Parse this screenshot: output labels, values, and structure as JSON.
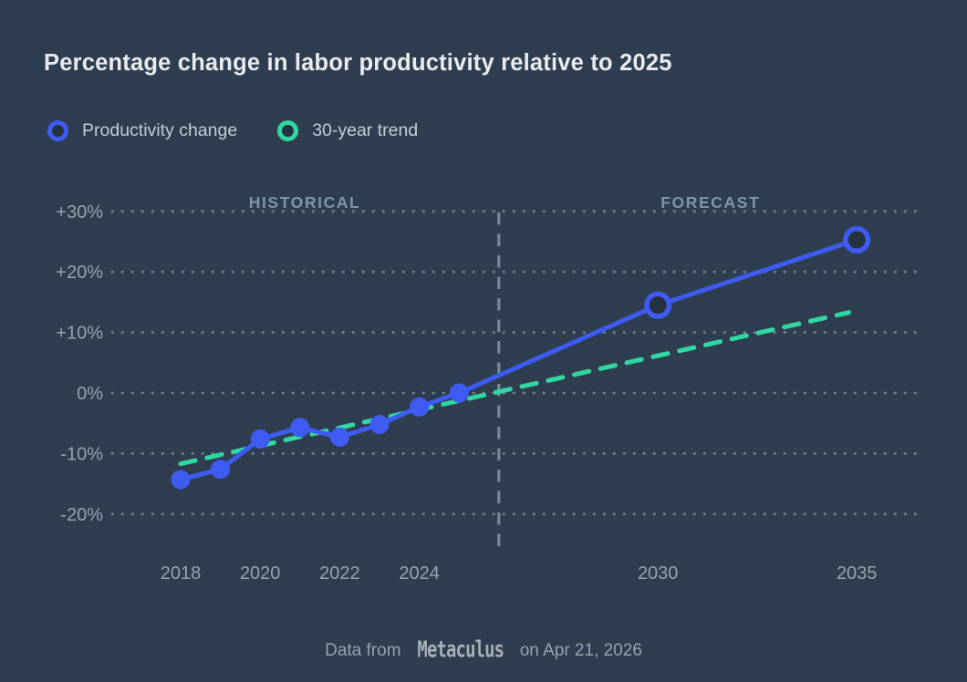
{
  "header": {
    "title": "Percentage change in labor productivity relative to 2025"
  },
  "legend": {
    "items": [
      {
        "label": "Productivity change",
        "color": "#3e5bf2"
      },
      {
        "label": "30-year trend",
        "color": "#31d7a0"
      }
    ]
  },
  "chart_data": {
    "type": "line",
    "title": "Percentage change in labor productivity relative to 2025",
    "grid": "horizontal-dotted",
    "legend_position": "top-left",
    "xlim": [
      2016.3,
      2036.5
    ],
    "ylim": [
      -26,
      31
    ],
    "x_ticks": [
      {
        "year": 2018,
        "label": "2018"
      },
      {
        "year": 2020,
        "label": "2020"
      },
      {
        "year": 2022,
        "label": "2022"
      },
      {
        "year": 2024,
        "label": "2024"
      },
      {
        "year": 2030,
        "label": "2030"
      },
      {
        "year": 2035,
        "label": "2035"
      }
    ],
    "y_ticks": [
      {
        "value": 30,
        "label": "+30%"
      },
      {
        "value": 20,
        "label": "+20%"
      },
      {
        "value": 10,
        "label": "+10%"
      },
      {
        "value": 0,
        "label": "0%"
      },
      {
        "value": -10,
        "label": "-10%"
      },
      {
        "value": -20,
        "label": "-20%"
      }
    ],
    "divider": {
      "year": 2026,
      "color": "#7f91a3"
    },
    "annotations": [
      {
        "text": "HISTORICAL",
        "x_year": 2021.12
      },
      {
        "text": "FORECAST",
        "x_year": 2031.32
      }
    ],
    "series": [
      {
        "name": "Productivity change",
        "style": "solid",
        "color": "#3e5bf2",
        "marker_open_fill": "#26323f",
        "forecast_from": 2026,
        "points": [
          {
            "year": 2018,
            "value": -14.3
          },
          {
            "year": 2019,
            "value": -12.6
          },
          {
            "year": 2020,
            "value": -7.6
          },
          {
            "year": 2021,
            "value": -5.7
          },
          {
            "year": 2022,
            "value": -7.3
          },
          {
            "year": 2023,
            "value": -5.2
          },
          {
            "year": 2024,
            "value": -2.3
          },
          {
            "year": 2025,
            "value": 0
          },
          {
            "year": 2030,
            "value": 14.5
          },
          {
            "year": 2035,
            "value": 25.3
          }
        ]
      },
      {
        "name": "30-year trend",
        "style": "dashed",
        "color": "#31d7a0",
        "points": [
          {
            "year": 2018,
            "value": -11.7
          },
          {
            "year": 2034.8,
            "value": 13.3
          }
        ]
      }
    ]
  },
  "footer": {
    "prefix": "Data from",
    "brand": "Metaculus",
    "suffix": "on Apr 21, 2026"
  }
}
